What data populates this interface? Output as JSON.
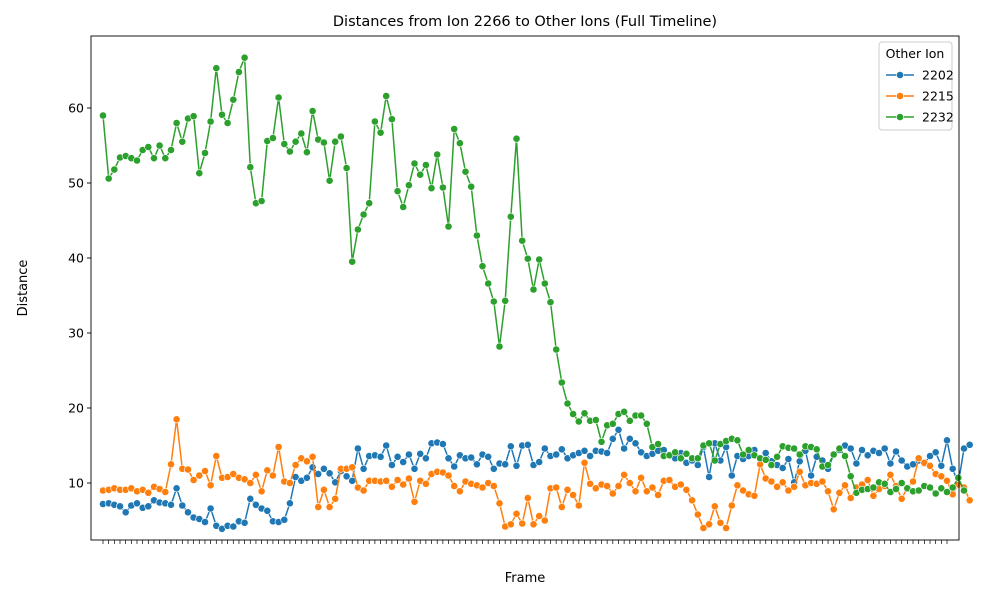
{
  "chart_data": {
    "type": "line",
    "title": "Distances from Ion 2266 to Other Ions (Full Timeline)",
    "xlabel": "Frame",
    "ylabel": "Distance",
    "ylim": [
      2.4,
      69.6
    ],
    "yticks": [
      10,
      20,
      30,
      40,
      50,
      60
    ],
    "x_tick_labels_note": "",
    "x_count": 150,
    "legend": {
      "title": "Other Ion",
      "placement": "top-right"
    },
    "series": [
      {
        "name": "2202",
        "color": "#1f77b4",
        "values": [
          7.2,
          7.3,
          7.1,
          6.9,
          6.1,
          7.0,
          7.3,
          6.7,
          6.9,
          7.7,
          7.4,
          7.3,
          7.1,
          9.3,
          7.0,
          6.1,
          5.4,
          5.2,
          4.8,
          6.6,
          4.3,
          3.9,
          4.3,
          4.2,
          4.9,
          4.7,
          7.9,
          7.1,
          6.6,
          6.3,
          4.9,
          4.8,
          5.1,
          7.3,
          10.8,
          10.3,
          10.7,
          12.1,
          11.2,
          11.9,
          11.3,
          10.1,
          11.6,
          10.9,
          10.3,
          14.6,
          11.9,
          13.6,
          13.7,
          13.5,
          15.0,
          12.4,
          13.5,
          12.8,
          13.8,
          11.9,
          13.9,
          13.3,
          15.3,
          15.4,
          15.2,
          13.3,
          12.2,
          13.7,
          13.3,
          13.4,
          12.5,
          13.8,
          13.5,
          11.9,
          12.6,
          12.5,
          14.9,
          12.3,
          15.0,
          15.1,
          12.4,
          12.8,
          14.6,
          13.6,
          13.8,
          14.5,
          13.3,
          13.7,
          14.0,
          14.3,
          13.6,
          14.3,
          14.2,
          14.0,
          15.9,
          17.1,
          14.6,
          15.9,
          15.3,
          14.1,
          13.6,
          13.9,
          14.3,
          14.4,
          13.8,
          13.3,
          14.0,
          12.7,
          13.0,
          12.4,
          14.8,
          10.8,
          15.3,
          13.0,
          14.8,
          11.0,
          13.6,
          13.2,
          13.6,
          14.4,
          13.2,
          14.0,
          12.9,
          12.4,
          12.0,
          13.2,
          10.1,
          12.9,
          14.3,
          11.0,
          13.5,
          13.0,
          11.9,
          13.8,
          14.4,
          15.0,
          14.6,
          12.6,
          14.4,
          13.7,
          14.3,
          14.0,
          14.6,
          12.6,
          14.2,
          13.0,
          12.2,
          12.5,
          13.0,
          12.6,
          13.6,
          14.1,
          12.3,
          15.7,
          11.9,
          9.9,
          14.6,
          15.1
        ]
      },
      {
        "name": "2215",
        "color": "#ff7f0e",
        "values": [
          9.0,
          9.1,
          9.3,
          9.1,
          9.1,
          9.3,
          8.9,
          9.1,
          8.7,
          9.5,
          9.2,
          8.8,
          12.5,
          18.5,
          11.9,
          11.8,
          10.4,
          11.0,
          11.6,
          9.7,
          13.6,
          10.7,
          10.8,
          11.2,
          10.7,
          10.5,
          10.0,
          11.1,
          8.9,
          11.7,
          11.0,
          14.8,
          10.2,
          10.0,
          12.4,
          13.3,
          12.9,
          13.5,
          6.8,
          9.1,
          6.8,
          7.9,
          11.9,
          11.9,
          12.1,
          9.4,
          9.0,
          10.3,
          10.3,
          10.2,
          10.3,
          9.5,
          10.4,
          9.8,
          10.6,
          7.5,
          10.3,
          9.9,
          11.2,
          11.5,
          11.4,
          11.0,
          9.6,
          8.9,
          10.2,
          9.9,
          9.7,
          9.4,
          10.0,
          9.6,
          7.3,
          4.2,
          4.5,
          5.9,
          4.6,
          8.0,
          4.5,
          5.6,
          5.0,
          9.3,
          9.4,
          6.8,
          9.1,
          8.4,
          7.0,
          12.7,
          9.9,
          9.3,
          9.8,
          9.6,
          8.6,
          9.6,
          11.1,
          10.0,
          8.9,
          10.7,
          8.9,
          9.4,
          8.4,
          10.3,
          10.4,
          9.5,
          9.8,
          9.1,
          7.7,
          5.8,
          4.0,
          4.5,
          6.9,
          4.7,
          4.0,
          7.0,
          9.7,
          9.0,
          8.5,
          8.3,
          12.5,
          10.6,
          10.2,
          9.5,
          10.1,
          9.0,
          9.5,
          11.5,
          9.7,
          10.0,
          9.9,
          10.2,
          8.9,
          6.5,
          8.7,
          9.7,
          8.0,
          9.4,
          9.8,
          10.4,
          8.3,
          9.2,
          9.6,
          11.1,
          9.6,
          7.9,
          9.4,
          10.2,
          13.3,
          12.7,
          12.3,
          11.2,
          10.9,
          10.3,
          8.5,
          9.8,
          9.4,
          7.7
        ]
      },
      {
        "name": "2232",
        "color": "#2ca02c",
        "values": [
          59.0,
          50.6,
          51.8,
          53.4,
          53.6,
          53.3,
          53.0,
          54.4,
          54.8,
          53.3,
          55.0,
          53.3,
          54.4,
          58.0,
          55.5,
          58.6,
          58.9,
          51.3,
          54.0,
          58.2,
          65.3,
          59.1,
          58.0,
          61.1,
          64.8,
          66.7,
          52.1,
          47.3,
          47.6,
          55.6,
          56.0,
          61.4,
          55.2,
          54.2,
          55.5,
          56.6,
          54.1,
          59.6,
          55.8,
          55.4,
          50.3,
          55.5,
          56.2,
          52.0,
          39.5,
          43.8,
          45.8,
          47.3,
          58.2,
          56.7,
          61.6,
          58.5,
          48.9,
          46.8,
          49.7,
          52.6,
          51.1,
          52.4,
          49.3,
          53.8,
          49.4,
          44.2,
          57.2,
          55.3,
          51.5,
          49.5,
          43.0,
          38.9,
          36.6,
          34.2,
          28.2,
          34.3,
          45.5,
          55.9,
          42.3,
          39.9,
          35.8,
          39.8,
          36.6,
          34.1,
          27.8,
          23.4,
          20.6,
          19.2,
          18.2,
          19.3,
          18.3,
          18.4,
          15.5,
          17.7,
          17.9,
          19.2,
          19.5,
          18.3,
          19.0,
          19.0,
          17.9,
          14.8,
          15.2,
          13.6,
          13.7,
          14.1,
          13.3,
          13.9,
          13.3,
          13.3,
          15.0,
          15.3,
          13.0,
          15.2,
          15.6,
          15.9,
          15.7,
          13.8,
          14.4,
          13.7,
          13.3,
          13.1,
          12.4,
          13.5,
          14.9,
          14.7,
          14.6,
          13.8,
          14.9,
          14.8,
          14.5,
          12.2,
          12.4,
          13.8,
          14.6,
          13.6,
          10.9,
          8.7,
          9.1,
          9.2,
          9.4,
          10.1,
          9.9,
          8.8,
          9.2,
          10.0,
          9.3,
          8.9,
          9.0,
          9.6,
          9.4,
          8.6,
          9.3,
          8.8,
          9.4,
          10.7,
          9.0
        ]
      }
    ]
  }
}
